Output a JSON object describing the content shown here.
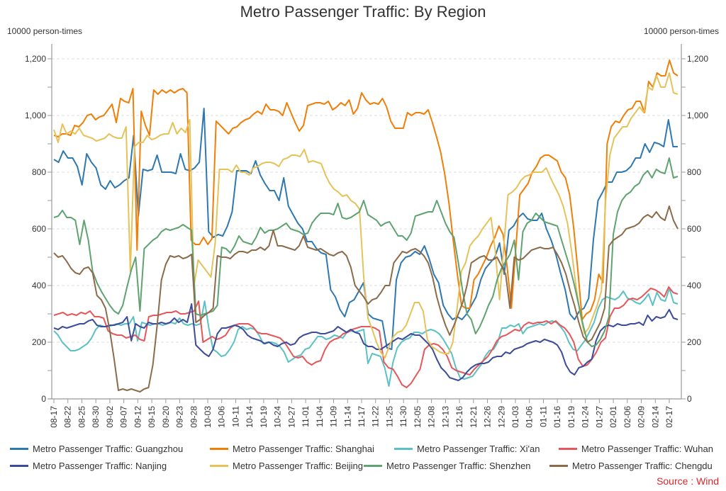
{
  "chart_data": {
    "type": "line",
    "title": "Metro Passenger Traffic: By Region",
    "ylabel_left": "10000 person-times",
    "ylabel_right": "10000 person-times",
    "xlabel": "",
    "ylim": [
      0,
      1200
    ],
    "yticks": [
      0,
      200,
      400,
      600,
      800,
      1000,
      1200
    ],
    "ytick_labels": [
      "0",
      "200",
      "400",
      "600",
      "800",
      "1,000",
      "1,200"
    ],
    "grid": true,
    "legend_position": "bottom",
    "x_tick_labels": [
      "08-17",
      "08-22",
      "08-25",
      "08-30",
      "09-02",
      "09-07",
      "09-12",
      "09-15",
      "09-20",
      "09-23",
      "09-28",
      "10-03",
      "10-06",
      "10-11",
      "10-14",
      "10-19",
      "10-24",
      "10-27",
      "11-01",
      "11-04",
      "11-09",
      "11-14",
      "11-17",
      "11-22",
      "11-25",
      "11-30",
      "12-05",
      "12-08",
      "12-13",
      "12-16",
      "12-21",
      "12-26",
      "12-29",
      "01-03",
      "01-06",
      "01-11",
      "01-16",
      "01-19",
      "01-24",
      "01-27",
      "02-01",
      "02-06",
      "02-09",
      "02-14",
      "02-17"
    ],
    "series": [
      {
        "name": "Metro Passenger Traffic: Guangzhou",
        "color": "#2e78b0",
        "values": [
          845,
          835,
          875,
          850,
          850,
          820,
          755,
          865,
          835,
          815,
          755,
          740,
          770,
          745,
          755,
          770,
          780,
          930,
          645,
          810,
          805,
          810,
          860,
          800,
          800,
          800,
          795,
          865,
          810,
          805,
          815,
          835,
          1025,
          590,
          570,
          580,
          575,
          610,
          660,
          805,
          805,
          805,
          795,
          840,
          790,
          760,
          735,
          735,
          700,
          780,
          680,
          650,
          620,
          600,
          555,
          555,
          530,
          515,
          510,
          385,
          360,
          315,
          290,
          340,
          350,
          380,
          410,
          300,
          285,
          280,
          275,
          180,
          175,
          420,
          480,
          500,
          505,
          520,
          510,
          540,
          495,
          440,
          410,
          330,
          300,
          280,
          290,
          280,
          300,
          330,
          360,
          420,
          460,
          480,
          500,
          550,
          440,
          595,
          610,
          640,
          655,
          635,
          630,
          630,
          655,
          600,
          560,
          510,
          445,
          385,
          300,
          280,
          310,
          320,
          355,
          560,
          700,
          730,
          765,
          765,
          800,
          800,
          805,
          820,
          850,
          850,
          900,
          870,
          905,
          900,
          890,
          985,
          890,
          890
        ]
      },
      {
        "name": "Metro Passenger Traffic: Shanghai",
        "color": "#f07f09",
        "values": [
          930,
          925,
          935,
          935,
          930,
          965,
          960,
          975,
          1000,
          1005,
          985,
          995,
          1000,
          1020,
          1040,
          975,
          1060,
          1050,
          1045,
          1095,
          525,
          1015,
          965,
          930,
          1090,
          1075,
          1090,
          1080,
          1090,
          1080,
          1090,
          1095,
          1080,
          560,
          545,
          545,
          570,
          545,
          565,
          980,
          965,
          950,
          935,
          955,
          960,
          975,
          985,
          990,
          1005,
          1015,
          1005,
          1040,
          1020,
          1020,
          1015,
          1000,
          1045,
          1010,
          975,
          945,
          965,
          1035,
          1040,
          1045,
          1045,
          1040,
          1050,
          1020,
          1030,
          1045,
          1035,
          1055,
          1005,
          1025,
          1080,
          1055,
          1040,
          1045,
          1040,
          1060,
          1030,
          980,
          955,
          955,
          955,
          1010,
          1000,
          1010,
          1010,
          1005,
          1020,
          975,
          925,
          870,
          790,
          690,
          560,
          440,
          330,
          320,
          320,
          420,
          440,
          470,
          500,
          540,
          570,
          610,
          580,
          460,
          320,
          520,
          720,
          740,
          760,
          800,
          820,
          850,
          860,
          860,
          850,
          840,
          800,
          780,
          720,
          600,
          450,
          280,
          300,
          310,
          350,
          440,
          410,
          900,
          960,
          980,
          975,
          1000,
          1020,
          1025,
          1050,
          1050,
          1010,
          1120,
          1100,
          1150,
          1140,
          1140,
          1195,
          1150,
          1140
        ]
      },
      {
        "name": "Metro Passenger Traffic: Xi'an",
        "color": "#5cc1c4",
        "values": [
          240,
          225,
          200,
          185,
          170,
          170,
          175,
          185,
          195,
          215,
          245,
          260,
          255,
          255,
          260,
          265,
          260,
          265,
          265,
          290,
          205,
          270,
          265,
          260,
          265,
          265,
          260,
          265,
          270,
          265,
          285,
          265,
          260,
          265,
          260,
          265,
          345,
          250,
          175,
          165,
          150,
          155,
          175,
          200,
          245,
          255,
          245,
          250,
          245,
          225,
          195,
          200,
          200,
          195,
          185,
          165,
          130,
          140,
          150,
          155,
          175,
          180,
          200,
          220,
          220,
          210,
          215,
          225,
          220,
          215,
          235,
          240,
          235,
          240,
          245,
          125,
          160,
          155,
          150,
          110,
          45,
          130,
          180,
          200,
          210,
          215,
          235,
          235,
          230,
          240,
          245,
          240,
          230,
          210,
          185,
          160,
          110,
          75,
          70,
          75,
          80,
          100,
          120,
          150,
          170,
          175,
          200,
          250,
          250,
          260,
          255,
          265,
          230,
          250,
          255,
          260,
          265,
          260,
          270,
          275,
          270,
          255,
          235,
          200,
          175,
          170,
          190,
          210,
          240,
          270,
          320,
          350,
          360,
          355,
          350,
          360,
          380,
          355,
          350,
          340,
          335,
          350,
          370,
          330,
          375,
          350,
          345,
          390,
          340,
          335
        ]
      },
      {
        "name": "Metro Passenger Traffic: Wuhan",
        "color": "#e5575a",
        "values": [
          295,
          300,
          305,
          295,
          300,
          295,
          305,
          300,
          310,
          290,
          290,
          285,
          240,
          230,
          225,
          225,
          215,
          220,
          225,
          210,
          205,
          290,
          295,
          295,
          300,
          305,
          305,
          310,
          300,
          300,
          305,
          310,
          345,
          200,
          210,
          220,
          210,
          215,
          225,
          250,
          260,
          265,
          265,
          265,
          255,
          235,
          230,
          230,
          225,
          220,
          215,
          200,
          175,
          150,
          145,
          150,
          130,
          120,
          130,
          135,
          175,
          200,
          210,
          215,
          230,
          235,
          245,
          250,
          255,
          255,
          255,
          250,
          240,
          130,
          110,
          105,
          80,
          50,
          40,
          55,
          80,
          105,
          175,
          190,
          195,
          190,
          175,
          150,
          110,
          100,
          95,
          90,
          85,
          105,
          120,
          135,
          150,
          175,
          205,
          220,
          225,
          235,
          245,
          240,
          260,
          270,
          265,
          270,
          270,
          275,
          265,
          275,
          260,
          250,
          230,
          200,
          140,
          115,
          120,
          140,
          165,
          200,
          215,
          290,
          320,
          320,
          330,
          350,
          355,
          350,
          360,
          375,
          390,
          385,
          375,
          360,
          395,
          375,
          370
        ]
      },
      {
        "name": "Metro Passenger Traffic: Nanjing",
        "color": "#3d4c99",
        "values": [
          250,
          245,
          255,
          250,
          255,
          260,
          265,
          265,
          275,
          280,
          260,
          255,
          255,
          260,
          260,
          265,
          270,
          290,
          205,
          265,
          255,
          250,
          270,
          265,
          265,
          270,
          265,
          270,
          285,
          270,
          280,
          270,
          335,
          190,
          175,
          160,
          150,
          175,
          230,
          250,
          250,
          255,
          260,
          255,
          245,
          225,
          215,
          210,
          205,
          195,
          200,
          190,
          185,
          195,
          200,
          190,
          195,
          215,
          225,
          230,
          235,
          235,
          230,
          230,
          235,
          240,
          255,
          245,
          235,
          245,
          235,
          230,
          195,
          185,
          185,
          175,
          175,
          185,
          195,
          205,
          215,
          210,
          220,
          230,
          225,
          225,
          210,
          195,
          175,
          140,
          110,
          95,
          75,
          70,
          65,
          75,
          95,
          110,
          120,
          125,
          125,
          130,
          145,
          150,
          150,
          165,
          160,
          175,
          180,
          185,
          195,
          200,
          205,
          200,
          210,
          205,
          200,
          190,
          165,
          120,
          95,
          85,
          110,
          115,
          130,
          140,
          205,
          240,
          255,
          260,
          255,
          265,
          260,
          260,
          265,
          265,
          270,
          260,
          295,
          275,
          290,
          285,
          290,
          315,
          285,
          280
        ]
      },
      {
        "name": "Metro Passenger Traffic: Beijing",
        "color": "#e5c35a",
        "values": [
          950,
          905,
          970,
          935,
          945,
          935,
          955,
          930,
          925,
          920,
          910,
          915,
          920,
          935,
          925,
          920,
          920,
          960,
          450,
          890,
          905,
          905,
          930,
          915,
          920,
          930,
          935,
          935,
          975,
          935,
          955,
          940,
          985,
          400,
          490,
          470,
          450,
          430,
          550,
          810,
          810,
          810,
          800,
          825,
          800,
          800,
          790,
          815,
          820,
          830,
          835,
          835,
          830,
          820,
          845,
          850,
          860,
          860,
          855,
          880,
          835,
          840,
          835,
          830,
          790,
          760,
          740,
          730,
          715,
          720,
          700,
          690,
          670,
          430,
          285,
          245,
          200,
          165,
          145,
          185,
          220,
          235,
          240,
          260,
          300,
          340,
          340,
          310,
          210,
          185,
          175,
          165,
          160,
          160,
          200,
          320,
          450,
          480,
          540,
          560,
          575,
          600,
          620,
          640,
          520,
          350,
          540,
          720,
          730,
          745,
          770,
          785,
          790,
          800,
          800,
          800,
          815,
          780,
          750,
          720,
          680,
          620,
          520,
          400,
          300,
          230,
          250,
          290,
          330,
          380,
          700,
          860,
          920,
          940,
          960,
          960,
          990,
          1010,
          1030,
          1010,
          1100,
          1090,
          1140,
          1100,
          1100,
          1150,
          1080,
          1075
        ]
      },
      {
        "name": "Metro Passenger Traffic: Shenzhen",
        "color": "#5fa370",
        "values": [
          640,
          645,
          665,
          640,
          640,
          630,
          545,
          630,
          560,
          450,
          410,
          380,
          355,
          330,
          310,
          300,
          330,
          395,
          455,
          500,
          310,
          530,
          545,
          560,
          570,
          590,
          600,
          595,
          600,
          605,
          615,
          605,
          595,
          300,
          295,
          300,
          305,
          310,
          330,
          535,
          530,
          515,
          540,
          575,
          555,
          550,
          545,
          570,
          605,
          585,
          595,
          595,
          600,
          610,
          620,
          600,
          595,
          590,
          580,
          585,
          620,
          640,
          655,
          655,
          655,
          650,
          690,
          640,
          635,
          640,
          650,
          660,
          700,
          650,
          640,
          630,
          610,
          620,
          625,
          600,
          575,
          575,
          560,
          585,
          645,
          650,
          655,
          660,
          660,
          700,
          660,
          620,
          590,
          570,
          480,
          380,
          300,
          280,
          230,
          255,
          290,
          330,
          360,
          420,
          460,
          485,
          510,
          560,
          420,
          590,
          620,
          630,
          655,
          640,
          625,
          620,
          615,
          610,
          560,
          510,
          460,
          400,
          330,
          260,
          200,
          185,
          190,
          210,
          240,
          290,
          580,
          660,
          700,
          720,
          730,
          750,
          760,
          790,
          805,
          780,
          810,
          800,
          795,
          850,
          780,
          785
        ]
      },
      {
        "name": "Metro Passenger Traffic: Chengdu",
        "color": "#8b6b4a",
        "values": [
          515,
          500,
          505,
          485,
          460,
          445,
          440,
          460,
          465,
          445,
          365,
          350,
          320,
          240,
          140,
          30,
          35,
          30,
          35,
          30,
          25,
          35,
          40,
          120,
          260,
          420,
          475,
          505,
          500,
          505,
          495,
          500,
          510,
          270,
          280,
          295,
          305,
          320,
          505,
          500,
          500,
          495,
          510,
          520,
          520,
          515,
          525,
          525,
          535,
          525,
          540,
          595,
          540,
          540,
          535,
          530,
          525,
          540,
          575,
          535,
          530,
          525,
          530,
          520,
          510,
          505,
          515,
          520,
          505,
          465,
          400,
          380,
          360,
          335,
          350,
          355,
          375,
          400,
          400,
          480,
          500,
          520,
          515,
          525,
          530,
          520,
          505,
          480,
          430,
          360,
          305,
          260,
          225,
          260,
          300,
          340,
          400,
          480,
          490,
          500,
          505,
          490,
          490,
          500,
          470,
          440,
          320,
          500,
          490,
          495,
          510,
          525,
          530,
          535,
          530,
          530,
          535,
          510,
          480,
          440,
          380,
          330,
          270,
          220,
          200,
          210,
          240,
          270,
          320,
          540,
          560,
          570,
          580,
          600,
          605,
          610,
          620,
          640,
          650,
          640,
          660,
          640,
          630,
          680,
          630,
          600
        ]
      }
    ]
  },
  "source": "Source : Wind"
}
